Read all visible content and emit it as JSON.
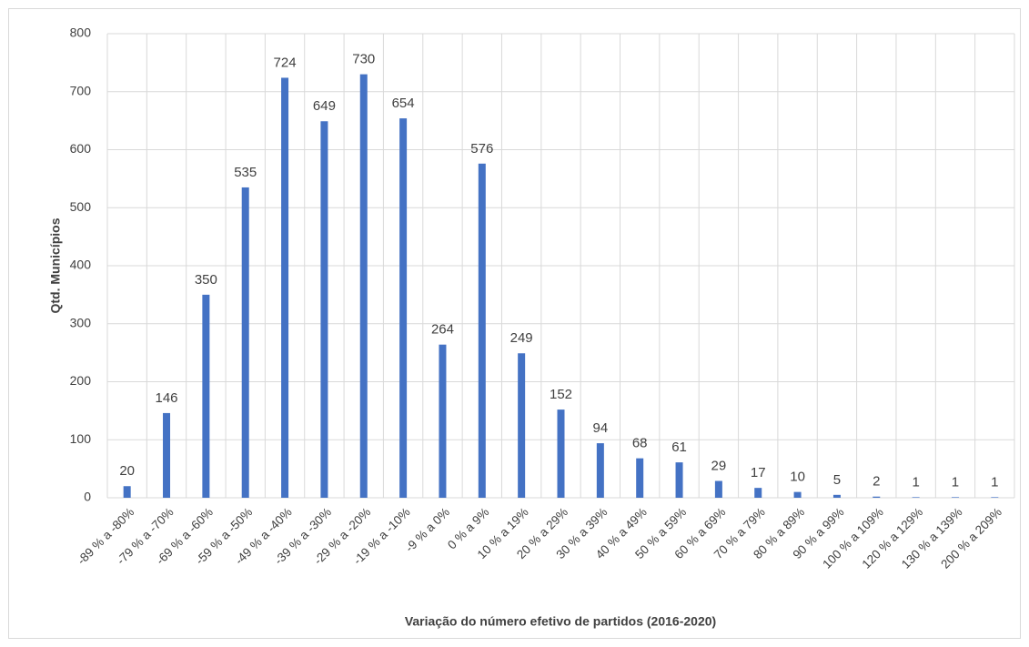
{
  "chart_data": {
    "type": "bar",
    "x_label": "Variação do número efetivo de partidos (2016-2020)",
    "y_label": "Qtd. Municípios",
    "categories": [
      "-89 % a -80%",
      "-79 % a -70%",
      "-69 % a -60%",
      "-59 % a -50%",
      "-49 % a -40%",
      "-39 % a -30%",
      "-29 % a -20%",
      "-19 % a -10%",
      "-9 % a 0%",
      "0 % a 9%",
      "10 % a 19%",
      "20 % a 29%",
      "30 % a 39%",
      "40 % a 49%",
      "50 % a 59%",
      "60 % a 69%",
      "70 % a 79%",
      "80 % a 89%",
      "90 % a 99%",
      "100 % a 109%",
      "120 % a 129%",
      "130 % a 139%",
      "200 % a 209%"
    ],
    "values": [
      20,
      146,
      350,
      535,
      724,
      649,
      730,
      654,
      264,
      576,
      249,
      152,
      94,
      68,
      61,
      29,
      17,
      10,
      5,
      2,
      1,
      1,
      1
    ],
    "color": "#4472c4",
    "ylim": [
      0,
      800
    ],
    "yticks": [
      0,
      100,
      200,
      300,
      400,
      500,
      600,
      700,
      800
    ],
    "grid": true
  }
}
